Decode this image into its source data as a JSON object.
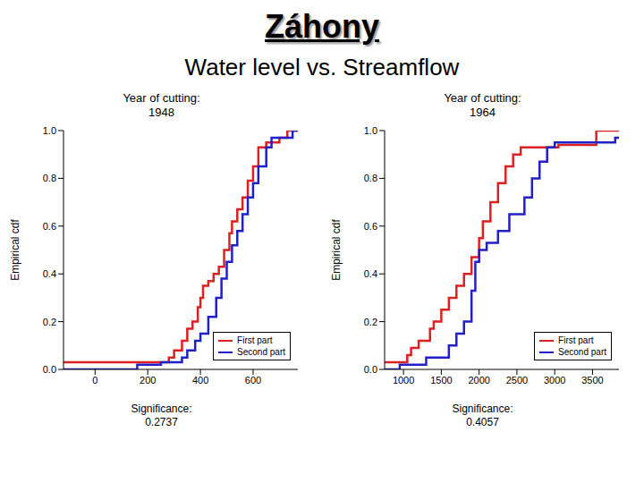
{
  "title": "Záhony",
  "subtitle": "Water level vs. Streamflow",
  "chart_data": [
    {
      "type": "step",
      "title": "Year of cutting:",
      "subtitle": "1948",
      "x_label": "Significance:",
      "significance": 0.2737,
      "y_label": "Empirical cdf",
      "xlim": [
        -120,
        770
      ],
      "xticks": [
        0,
        200,
        400,
        600
      ],
      "ylim": [
        0,
        1
      ],
      "yticks": [
        {
          "value": 0,
          "label": "0.0"
        },
        {
          "value": 0.2,
          "label": "0.2"
        },
        {
          "value": 0.4,
          "label": "0.4"
        },
        {
          "value": 0.6,
          "label": "0.6"
        },
        {
          "value": 0.8,
          "label": "0.8"
        },
        {
          "value": 1,
          "label": "1.0"
        }
      ],
      "grid": false,
      "legend": "lower right",
      "series": [
        {
          "name": "First part",
          "color": "#dd2020",
          "x": [
            -120,
            280,
            300,
            330,
            350,
            370,
            390,
            400,
            410,
            430,
            450,
            470,
            490,
            510,
            520,
            540,
            560,
            580,
            600,
            620,
            650,
            700,
            730,
            770
          ],
          "values": [
            0.03,
            0.05,
            0.08,
            0.12,
            0.17,
            0.2,
            0.26,
            0.3,
            0.35,
            0.37,
            0.4,
            0.43,
            0.5,
            0.57,
            0.62,
            0.67,
            0.72,
            0.79,
            0.85,
            0.93,
            0.95,
            0.97,
            1.0,
            1.0
          ]
        },
        {
          "name": "Second part",
          "color": "#2020c8",
          "x": [
            -120,
            160,
            250,
            330,
            350,
            380,
            400,
            430,
            460,
            480,
            500,
            520,
            540,
            560,
            580,
            600,
            620,
            650,
            670,
            730,
            750,
            770
          ],
          "values": [
            0.0,
            0.02,
            0.03,
            0.05,
            0.08,
            0.12,
            0.15,
            0.22,
            0.3,
            0.38,
            0.45,
            0.52,
            0.58,
            0.65,
            0.72,
            0.78,
            0.85,
            0.93,
            0.97,
            0.97,
            1.0,
            1.0
          ]
        }
      ]
    },
    {
      "type": "step",
      "title": "Year of cutting:",
      "subtitle": "1964",
      "x_label": "Significance:",
      "significance": 0.4057,
      "y_label": "Empirical cdf",
      "xlim": [
        750,
        3850
      ],
      "xticks": [
        1000,
        1500,
        2000,
        2500,
        3000,
        3500
      ],
      "ylim": [
        0,
        1
      ],
      "yticks": [
        {
          "value": 0,
          "label": "0.0"
        },
        {
          "value": 0.2,
          "label": "0.2"
        },
        {
          "value": 0.4,
          "label": "0.4"
        },
        {
          "value": 0.6,
          "label": "0.6"
        },
        {
          "value": 0.8,
          "label": "0.8"
        },
        {
          "value": 1,
          "label": "1.0"
        }
      ],
      "grid": false,
      "legend": "lower right",
      "series": [
        {
          "name": "First part",
          "color": "#dd2020",
          "x": [
            750,
            1050,
            1100,
            1200,
            1350,
            1400,
            1500,
            1600,
            1700,
            1800,
            1900,
            2000,
            2050,
            2150,
            2250,
            2350,
            2450,
            2550,
            3050,
            3550,
            3850
          ],
          "values": [
            0.03,
            0.06,
            0.09,
            0.12,
            0.17,
            0.2,
            0.25,
            0.3,
            0.35,
            0.4,
            0.47,
            0.55,
            0.62,
            0.7,
            0.78,
            0.85,
            0.9,
            0.93,
            0.94,
            1.0,
            1.0
          ]
        },
        {
          "name": "Second part",
          "color": "#2020c8",
          "x": [
            750,
            950,
            1300,
            1600,
            1700,
            1800,
            1900,
            1950,
            2000,
            2100,
            2250,
            2400,
            2600,
            2700,
            2800,
            2900,
            3000,
            3800,
            3850
          ],
          "values": [
            0.0,
            0.02,
            0.05,
            0.1,
            0.15,
            0.2,
            0.33,
            0.45,
            0.5,
            0.53,
            0.58,
            0.65,
            0.72,
            0.8,
            0.87,
            0.93,
            0.95,
            0.97,
            0.97
          ]
        }
      ]
    }
  ]
}
